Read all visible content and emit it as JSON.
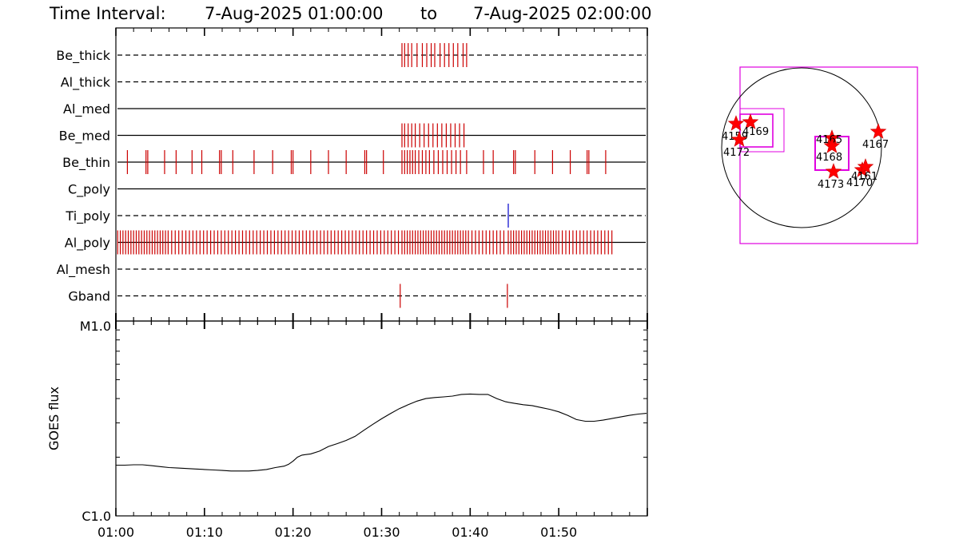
{
  "header": {
    "prefix": "Time Interval:",
    "start": "7-Aug-2025 01:00:00",
    "sep": "to",
    "end": "7-Aug-2025 02:00:00"
  },
  "chart_data": [
    {
      "type": "timeline",
      "x_range_minutes": [
        0,
        60
      ],
      "x_tick_labels": [
        "01:00",
        "01:10",
        "01:20",
        "01:30",
        "01:40",
        "01:50"
      ],
      "x_tick_minutes": [
        0,
        10,
        20,
        30,
        40,
        50
      ],
      "channels": [
        {
          "name": "Be_thick",
          "style": "dashed",
          "color": "#cc0000",
          "events": [
            32.3,
            32.6,
            33.0,
            33.4,
            34.0,
            34.6,
            35.1,
            35.6,
            36.0,
            36.6,
            37.1,
            37.6,
            38.1,
            38.6,
            39.2,
            39.6
          ]
        },
        {
          "name": "Al_thick",
          "style": "dashed",
          "color": "#cc0000",
          "events": []
        },
        {
          "name": "Al_med",
          "style": "solid",
          "color": "#cc0000",
          "events": []
        },
        {
          "name": "Be_med",
          "style": "solid",
          "color": "#cc0000",
          "events": [
            32.3,
            32.6,
            33.0,
            33.4,
            33.8,
            34.3,
            34.8,
            35.3,
            35.8,
            36.3,
            36.8,
            37.3,
            37.8,
            38.3,
            38.8,
            39.3
          ]
        },
        {
          "name": "Be_thin",
          "style": "solid",
          "color": "#cc0000",
          "events": [
            1.3,
            3.4,
            3.6,
            5.5,
            6.8,
            8.6,
            9.7,
            11.7,
            11.9,
            13.2,
            15.6,
            17.7,
            19.8,
            20.0,
            22.0,
            24.0,
            26.0,
            28.1,
            28.3,
            30.2,
            32.3,
            32.6,
            32.9,
            33.2,
            33.5,
            33.8,
            34.2,
            34.6,
            35.0,
            35.4,
            35.9,
            36.4,
            36.9,
            37.4,
            37.9,
            38.4,
            38.9,
            39.6,
            41.5,
            42.6,
            44.9,
            45.1,
            47.3,
            49.3,
            51.3,
            53.2,
            53.4,
            55.3
          ]
        },
        {
          "name": "C_poly",
          "style": "solid",
          "color": "#cc0000",
          "events": []
        },
        {
          "name": "Ti_poly",
          "style": "dashed",
          "color": "#0000cc",
          "events": [
            44.3
          ]
        },
        {
          "name": "Al_poly",
          "style": "solid",
          "color": "#cc0000",
          "events": [
            0.2,
            0.5,
            0.8,
            1.1,
            1.4,
            1.7,
            2.0,
            2.3,
            2.6,
            2.9,
            3.2,
            3.5,
            3.8,
            4.1,
            4.4,
            4.7,
            5.0,
            5.3,
            5.6,
            5.9,
            6.3,
            6.7,
            7.1,
            7.5,
            7.9,
            8.3,
            8.7,
            9.1,
            9.5,
            9.9,
            10.3,
            10.7,
            11.1,
            11.5,
            11.9,
            12.3,
            12.7,
            13.1,
            13.5,
            13.9,
            14.3,
            14.7,
            15.1,
            15.5,
            15.9,
            16.3,
            16.7,
            17.1,
            17.5,
            17.9,
            18.3,
            18.7,
            19.1,
            19.5,
            19.9,
            20.3,
            20.7,
            21.1,
            21.5,
            21.9,
            22.3,
            22.7,
            23.1,
            23.5,
            23.9,
            24.3,
            24.7,
            25.1,
            25.5,
            25.9,
            26.3,
            26.7,
            27.1,
            27.5,
            27.9,
            28.3,
            28.7,
            29.1,
            29.5,
            29.9,
            30.3,
            30.7,
            31.1,
            31.5,
            31.9,
            32.3,
            32.6,
            32.9,
            33.2,
            33.5,
            33.8,
            34.1,
            34.4,
            34.7,
            35.0,
            35.3,
            35.6,
            35.9,
            36.2,
            36.5,
            36.8,
            37.1,
            37.4,
            37.7,
            38.0,
            38.3,
            38.6,
            38.9,
            39.2,
            39.5,
            39.8,
            40.2,
            40.6,
            41.0,
            41.4,
            41.8,
            42.2,
            42.6,
            43.0,
            43.4,
            43.8,
            44.3,
            44.6,
            44.9,
            45.2,
            45.5,
            45.8,
            46.1,
            46.4,
            46.7,
            47.0,
            47.3,
            47.6,
            47.9,
            48.2,
            48.5,
            48.8,
            49.1,
            49.4,
            49.7,
            50.0,
            50.4,
            50.8,
            51.2,
            51.6,
            52.0,
            52.4,
            52.8,
            53.2,
            53.6,
            54.0,
            54.4,
            54.8,
            55.2,
            55.6,
            56.0
          ]
        },
        {
          "name": "Al_mesh",
          "style": "dashed",
          "color": "#cc0000",
          "events": []
        },
        {
          "name": "Gband",
          "style": "dashed",
          "color": "#cc0000",
          "events": [
            32.1,
            44.2
          ]
        }
      ]
    },
    {
      "type": "line",
      "ylabel": "GOES flux",
      "y_scale": "log",
      "y_tick_labels": {
        "top": "M1.0",
        "bottom": "C1.0"
      },
      "y_range_wm2": [
        1e-06,
        1e-05
      ],
      "x_range_minutes": [
        0,
        60
      ],
      "x_tick_labels": [
        "01:00",
        "01:10",
        "01:20",
        "01:30",
        "01:40",
        "01:50"
      ],
      "series": [
        {
          "x_minutes": [
            0,
            1,
            2,
            3,
            4,
            5,
            6,
            7,
            8,
            9,
            10,
            11,
            12,
            13,
            14,
            15,
            16,
            17,
            18,
            19,
            19.5,
            20,
            20.5,
            21,
            22,
            23,
            24,
            25,
            26,
            27,
            28,
            29,
            30,
            31,
            32,
            33,
            34,
            35,
            36,
            37,
            38,
            39,
            40,
            41,
            42,
            43,
            44,
            45,
            46,
            47,
            48,
            49,
            50,
            51,
            52,
            53,
            54,
            55,
            56,
            57,
            58,
            59,
            60
          ],
          "flux_wm2": [
            1.82e-06,
            1.82e-06,
            1.83e-06,
            1.83e-06,
            1.81e-06,
            1.79e-06,
            1.77e-06,
            1.76e-06,
            1.75e-06,
            1.74e-06,
            1.73e-06,
            1.72e-06,
            1.71e-06,
            1.7e-06,
            1.7e-06,
            1.7e-06,
            1.71e-06,
            1.73e-06,
            1.77e-06,
            1.8e-06,
            1.84e-06,
            1.91e-06,
            2e-06,
            2.05e-06,
            2.08e-06,
            2.15e-06,
            2.27e-06,
            2.35e-06,
            2.44e-06,
            2.56e-06,
            2.75e-06,
            2.95e-06,
            3.15e-06,
            3.35e-06,
            3.55e-06,
            3.72e-06,
            3.88e-06,
            4e-06,
            4.05e-06,
            4.08e-06,
            4.12e-06,
            4.2e-06,
            4.22e-06,
            4.2e-06,
            4.2e-06,
            4e-06,
            3.85e-06,
            3.78e-06,
            3.72e-06,
            3.68e-06,
            3.6e-06,
            3.52e-06,
            3.42e-06,
            3.28e-06,
            3.12e-06,
            3.06e-06,
            3.06e-06,
            3.1e-06,
            3.16e-06,
            3.22e-06,
            3.28e-06,
            3.33e-06,
            3.36e-06
          ]
        }
      ]
    },
    {
      "type": "scatter",
      "description_kind": "solar_disk_map",
      "active_regions": [
        {
          "label": "4159",
          "x": -0.82,
          "y": 0.3
        },
        {
          "label": "4172",
          "x": -0.78,
          "y": 0.1
        },
        {
          "label": "4169",
          "x": -0.64,
          "y": 0.32
        },
        {
          "label": "4165",
          "x": 0.38,
          "y": 0.12
        },
        {
          "label": "4168",
          "x": 0.38,
          "y": 0.02
        },
        {
          "label": "4167",
          "x": 0.96,
          "y": 0.2
        },
        {
          "label": "4173",
          "x": 0.4,
          "y": -0.3
        },
        {
          "label": "4170",
          "x": 0.76,
          "y": -0.28
        },
        {
          "label": "4161",
          "x": 0.8,
          "y": -0.24
        }
      ]
    }
  ]
}
